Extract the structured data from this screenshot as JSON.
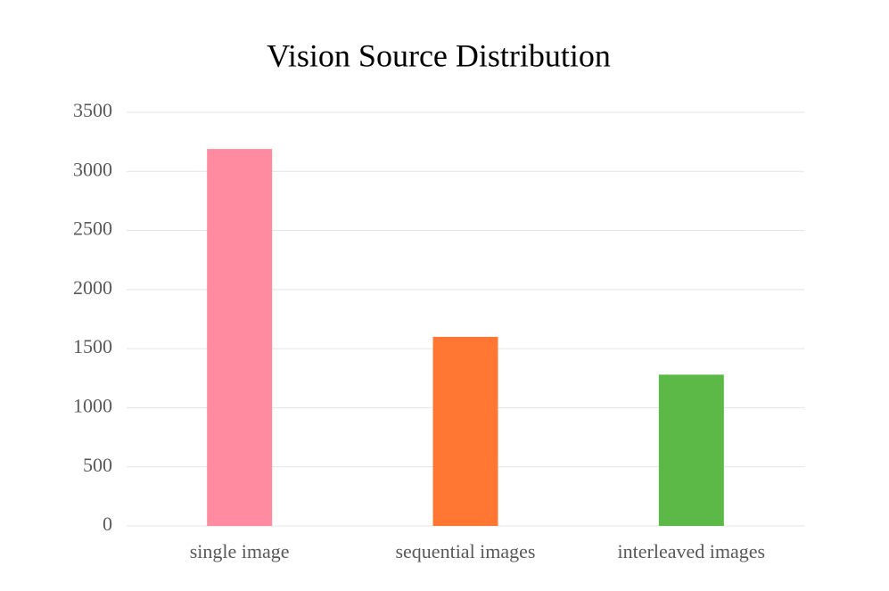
{
  "chart_data": {
    "type": "bar",
    "title": "Vision Source Distribution",
    "categories": [
      "single image",
      "sequential images",
      "interleaved images"
    ],
    "values": [
      3190,
      1600,
      1280
    ],
    "colors": [
      "#ff8ba0",
      "#ff7733",
      "#5cb947"
    ],
    "ylim": [
      0,
      3500
    ],
    "yticks": [
      0,
      500,
      1000,
      1500,
      2000,
      2500,
      3000,
      3500
    ],
    "grid": true
  }
}
